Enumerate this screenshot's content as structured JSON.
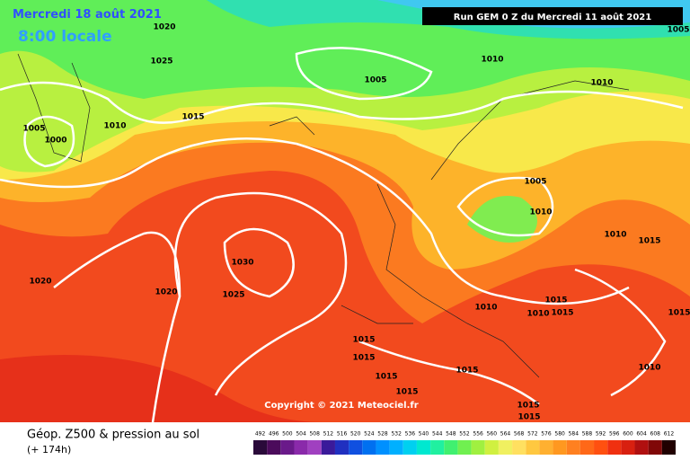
{
  "header": {
    "date": "Mercredi 18 août 2021",
    "time": "8:00 locale",
    "run": "Run GEM 0 Z du Mercredi 11 août 2021"
  },
  "isobar_labels": [
    "1020",
    "1025",
    "1005",
    "1010",
    "1005",
    "1010",
    "1015",
    "1010",
    "1005",
    "1000",
    "1005",
    "1010",
    "1010",
    "1015",
    "1020",
    "1030",
    "1020",
    "1025",
    "1010",
    "1015",
    "1010",
    "1015",
    "1015",
    "1015",
    "1015",
    "1015",
    "1015",
    "1015",
    "1010",
    "1015",
    "1015"
  ],
  "copyright": "Copyright © 2021 Meteociel.fr",
  "footer": {
    "title": "Géop. Z500 & pression au sol",
    "lead": "(+ 174h)"
  },
  "scale": {
    "ticks": [
      492,
      496,
      500,
      504,
      508,
      512,
      516,
      520,
      524,
      528,
      532,
      536,
      540,
      544,
      548,
      552,
      556,
      560,
      564,
      568,
      572,
      576,
      580,
      584,
      588,
      592,
      596,
      600,
      604,
      608,
      612
    ],
    "colors": [
      "#2a0a3a",
      "#4b0b5b",
      "#6a1a8a",
      "#8a2aaa",
      "#a040c0",
      "#3a1a9a",
      "#2030c0",
      "#1050e0",
      "#0070f0",
      "#0090ff",
      "#00b0ff",
      "#00d0f0",
      "#00e8d0",
      "#20f0a0",
      "#40f070",
      "#70f050",
      "#a0f040",
      "#d0f040",
      "#f0f060",
      "#ffe060",
      "#ffc840",
      "#ffb030",
      "#ff9820",
      "#ff8020",
      "#ff6818",
      "#ff5010",
      "#f03010",
      "#d82010",
      "#b01010",
      "#800808",
      "#200000"
    ]
  }
}
